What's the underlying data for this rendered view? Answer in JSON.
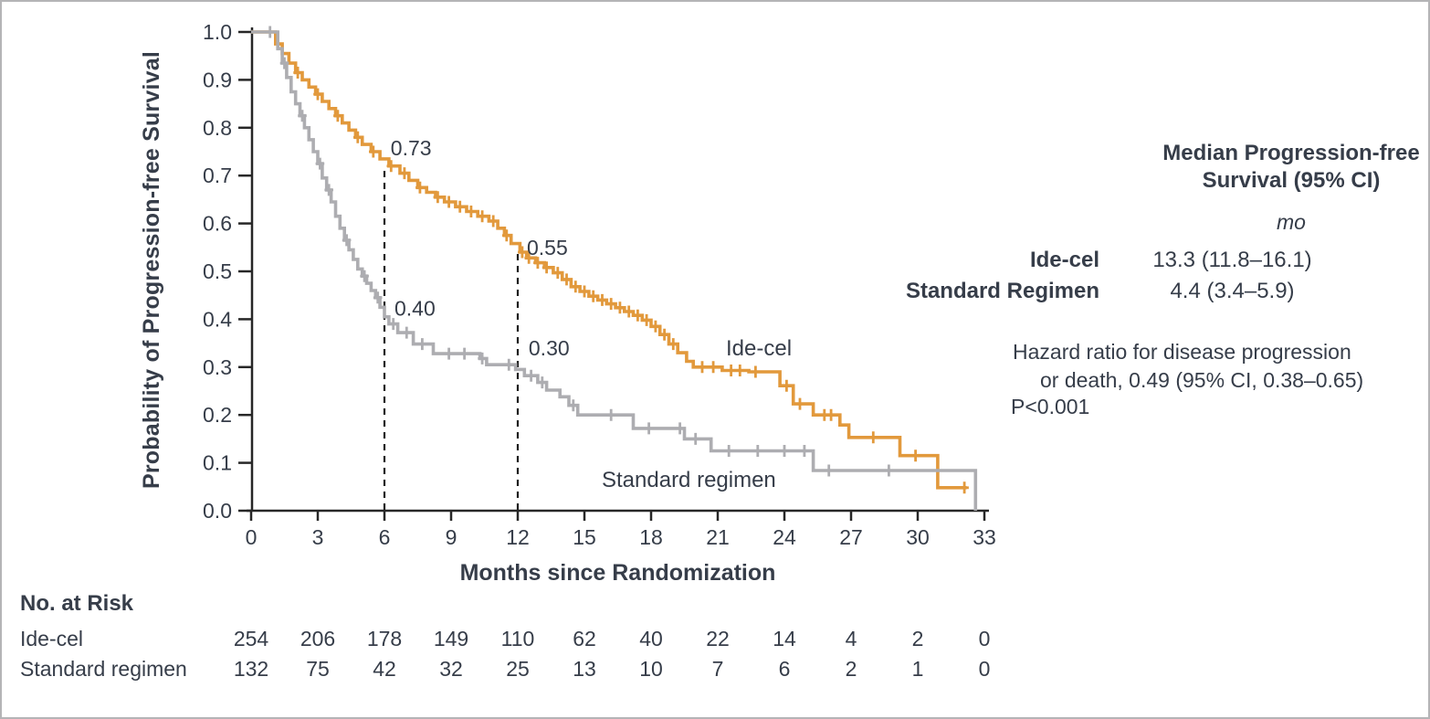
{
  "figure": {
    "kind": "kaplan-meier-survival-figure"
  },
  "chart_data": {
    "type": "line",
    "subtype": "kaplan-meier-step",
    "title": "",
    "xlabel": "Months since Randomization",
    "ylabel": "Probability of Progression-free Survival",
    "xlim": [
      0,
      33
    ],
    "ylim": [
      0.0,
      1.0
    ],
    "x_ticks": [
      0,
      3,
      6,
      9,
      12,
      15,
      18,
      21,
      24,
      27,
      30,
      33
    ],
    "y_tick_labels": [
      "1.0",
      "0.9",
      "0.8",
      "0.7",
      "0.6",
      "0.5",
      "0.4",
      "0.3",
      "0.2",
      "0.1",
      "0.0"
    ],
    "grid": false,
    "legend_position": "labels-on-plot",
    "series": [
      {
        "name": "Ide-cel",
        "color": "#E2993C",
        "points": [
          [
            0,
            1
          ],
          [
            0.9,
            1
          ],
          [
            1.1,
            0.975
          ],
          [
            1.4,
            0.955
          ],
          [
            1.7,
            0.935
          ],
          [
            2,
            0.915
          ],
          [
            2.3,
            0.9
          ],
          [
            2.6,
            0.885
          ],
          [
            2.9,
            0.87
          ],
          [
            3.2,
            0.855
          ],
          [
            3.5,
            0.84
          ],
          [
            3.8,
            0.825
          ],
          [
            4.1,
            0.81
          ],
          [
            4.4,
            0.795
          ],
          [
            4.7,
            0.78
          ],
          [
            5,
            0.765
          ],
          [
            5.4,
            0.75
          ],
          [
            5.8,
            0.735
          ],
          [
            6.2,
            0.72
          ],
          [
            6.7,
            0.705
          ],
          [
            7.1,
            0.69
          ],
          [
            7.5,
            0.675
          ],
          [
            7.9,
            0.665
          ],
          [
            8.3,
            0.655
          ],
          [
            8.7,
            0.645
          ],
          [
            9.2,
            0.635
          ],
          [
            9.7,
            0.625
          ],
          [
            10.2,
            0.615
          ],
          [
            10.7,
            0.605
          ],
          [
            11.1,
            0.59
          ],
          [
            11.4,
            0.575
          ],
          [
            11.7,
            0.558
          ],
          [
            12.1,
            0.54
          ],
          [
            12.4,
            0.528
          ],
          [
            12.8,
            0.518
          ],
          [
            13.2,
            0.508
          ],
          [
            13.6,
            0.497
          ],
          [
            14,
            0.483
          ],
          [
            14.4,
            0.468
          ],
          [
            14.8,
            0.458
          ],
          [
            15.2,
            0.448
          ],
          [
            15.6,
            0.44
          ],
          [
            16,
            0.432
          ],
          [
            16.4,
            0.424
          ],
          [
            16.8,
            0.416
          ],
          [
            17.2,
            0.408
          ],
          [
            17.6,
            0.398
          ],
          [
            18,
            0.385
          ],
          [
            18.4,
            0.368
          ],
          [
            18.8,
            0.348
          ],
          [
            19.2,
            0.33
          ],
          [
            19.6,
            0.312
          ],
          [
            19.9,
            0.3
          ],
          [
            21.2,
            0.293
          ],
          [
            22.4,
            0.29
          ],
          [
            23.8,
            0.261
          ],
          [
            24.4,
            0.223
          ],
          [
            25.3,
            0.2
          ],
          [
            26.5,
            0.179
          ],
          [
            26.9,
            0.153
          ],
          [
            29.2,
            0.115
          ],
          [
            30.9,
            0.048
          ],
          [
            32.2,
            0.048
          ]
        ],
        "censors": [
          [
            2.1,
            0.915
          ],
          [
            3,
            0.87
          ],
          [
            3.9,
            0.825
          ],
          [
            4.8,
            0.78
          ],
          [
            5.5,
            0.75
          ],
          [
            6.3,
            0.72
          ],
          [
            6.9,
            0.705
          ],
          [
            7.6,
            0.675
          ],
          [
            8.4,
            0.655
          ],
          [
            8.9,
            0.645
          ],
          [
            9.4,
            0.635
          ],
          [
            9.9,
            0.625
          ],
          [
            10.4,
            0.615
          ],
          [
            10.9,
            0.605
          ],
          [
            11.5,
            0.575
          ],
          [
            12.2,
            0.54
          ],
          [
            12.5,
            0.528
          ],
          [
            12.9,
            0.518
          ],
          [
            13.3,
            0.508
          ],
          [
            13.8,
            0.497
          ],
          [
            14.2,
            0.483
          ],
          [
            14.6,
            0.468
          ],
          [
            15,
            0.458
          ],
          [
            15.4,
            0.448
          ],
          [
            15.8,
            0.44
          ],
          [
            16.2,
            0.432
          ],
          [
            16.6,
            0.424
          ],
          [
            17,
            0.416
          ],
          [
            17.4,
            0.408
          ],
          [
            17.8,
            0.398
          ],
          [
            18.2,
            0.385
          ],
          [
            18.6,
            0.368
          ],
          [
            19,
            0.348
          ],
          [
            20.3,
            0.3
          ],
          [
            20.8,
            0.3
          ],
          [
            21.6,
            0.293
          ],
          [
            22,
            0.293
          ],
          [
            22.7,
            0.29
          ],
          [
            24.1,
            0.261
          ],
          [
            24.7,
            0.223
          ],
          [
            25.8,
            0.2
          ],
          [
            26.1,
            0.2
          ],
          [
            28,
            0.153
          ],
          [
            29.9,
            0.115
          ],
          [
            32.1,
            0.048
          ]
        ],
        "landmarks": {
          "month_6": 0.73,
          "month_12": 0.55
        }
      },
      {
        "name": "Standard regimen",
        "color": "#ADADB1",
        "points": [
          [
            0,
            1
          ],
          [
            1,
            1
          ],
          [
            1.2,
            0.965
          ],
          [
            1.4,
            0.935
          ],
          [
            1.6,
            0.905
          ],
          [
            1.8,
            0.875
          ],
          [
            2,
            0.85
          ],
          [
            2.2,
            0.825
          ],
          [
            2.4,
            0.8
          ],
          [
            2.6,
            0.775
          ],
          [
            2.8,
            0.75
          ],
          [
            3,
            0.725
          ],
          [
            3.2,
            0.695
          ],
          [
            3.4,
            0.67
          ],
          [
            3.6,
            0.645
          ],
          [
            3.8,
            0.615
          ],
          [
            4,
            0.59
          ],
          [
            4.2,
            0.565
          ],
          [
            4.4,
            0.545
          ],
          [
            4.6,
            0.525
          ],
          [
            4.8,
            0.505
          ],
          [
            5,
            0.49
          ],
          [
            5.2,
            0.475
          ],
          [
            5.4,
            0.46
          ],
          [
            5.6,
            0.445
          ],
          [
            5.8,
            0.425
          ],
          [
            6,
            0.405
          ],
          [
            6.2,
            0.39
          ],
          [
            6.6,
            0.372
          ],
          [
            7.3,
            0.348
          ],
          [
            8.2,
            0.328
          ],
          [
            10.3,
            0.318
          ],
          [
            10.6,
            0.305
          ],
          [
            11.9,
            0.295
          ],
          [
            12.3,
            0.282
          ],
          [
            12.9,
            0.268
          ],
          [
            13.3,
            0.252
          ],
          [
            13.9,
            0.238
          ],
          [
            14.3,
            0.22
          ],
          [
            14.7,
            0.2
          ],
          [
            17.2,
            0.172
          ],
          [
            19.5,
            0.15
          ],
          [
            20.7,
            0.125
          ],
          [
            25.3,
            0.084
          ],
          [
            32.6,
            0.084
          ],
          [
            32.6,
            0
          ]
        ],
        "censors": [
          [
            0.85,
            1
          ],
          [
            1.5,
            0.935
          ],
          [
            2.3,
            0.825
          ],
          [
            3.1,
            0.725
          ],
          [
            3.5,
            0.67
          ],
          [
            4.3,
            0.565
          ],
          [
            5.1,
            0.49
          ],
          [
            5.7,
            0.445
          ],
          [
            6.4,
            0.39
          ],
          [
            7,
            0.372
          ],
          [
            7.7,
            0.348
          ],
          [
            8.9,
            0.328
          ],
          [
            9.6,
            0.328
          ],
          [
            10.4,
            0.318
          ],
          [
            11.6,
            0.305
          ],
          [
            12.6,
            0.282
          ],
          [
            13.1,
            0.268
          ],
          [
            14.5,
            0.22
          ],
          [
            16.2,
            0.2
          ],
          [
            17.9,
            0.172
          ],
          [
            19.3,
            0.172
          ],
          [
            20,
            0.15
          ],
          [
            21.5,
            0.125
          ],
          [
            22.8,
            0.125
          ],
          [
            24,
            0.125
          ],
          [
            24.9,
            0.125
          ],
          [
            26,
            0.084
          ],
          [
            28.7,
            0.084
          ]
        ],
        "landmarks": {
          "month_6": 0.4,
          "month_12": 0.3
        }
      }
    ],
    "reference_lines": [
      {
        "x": 6,
        "y_top": 0.73,
        "style": "dashed"
      },
      {
        "x": 12,
        "y_top": 0.55,
        "style": "dashed"
      }
    ],
    "annotations": [
      {
        "text": "0.73",
        "month": 6.28,
        "prob": 0.742,
        "size": 23
      },
      {
        "text": "0.55",
        "month": 12.41,
        "prob": 0.534,
        "size": 23
      },
      {
        "text": "0.40",
        "month": 6.45,
        "prob": 0.407,
        "size": 23
      },
      {
        "text": "0.30",
        "month": 12.49,
        "prob": 0.324,
        "size": 23
      },
      {
        "text": "Ide-cel",
        "month": 21.37,
        "prob": 0.324,
        "size": 24
      },
      {
        "text": "Standard regimen",
        "month": 15.78,
        "prob": 0.05,
        "size": 24
      }
    ]
  },
  "stats_panel": {
    "header_line1": "Median Progression-free",
    "header_line2": "Survival (95% CI)",
    "unit": "mo",
    "rows": [
      {
        "label": "Ide-cel",
        "value": "13.3 (11.8–16.1)"
      },
      {
        "label": "Standard Regimen",
        "value": "4.4 (3.4–5.9)"
      }
    ],
    "hazard_line1": "Hazard ratio for disease progression",
    "hazard_line2": "or death, 0.49 (95% CI, 0.38–0.65)",
    "p_value": "P<0.001"
  },
  "risk_table": {
    "title": "No. at Risk",
    "timepoints": [
      0,
      3,
      6,
      9,
      12,
      15,
      18,
      21,
      24,
      27,
      30,
      33
    ],
    "rows": [
      {
        "label": "Ide-cel",
        "values": [
          "254",
          "206",
          "178",
          "149",
          "110",
          "62",
          "40",
          "22",
          "14",
          "4",
          "2",
          "0"
        ]
      },
      {
        "label": "Standard regimen",
        "values": [
          "132",
          "75",
          "42",
          "32",
          "25",
          "13",
          "10",
          "7",
          "6",
          "2",
          "1",
          "0"
        ]
      }
    ]
  },
  "colors": {
    "ide_cel": "#E2993C",
    "standard_regimen": "#ADADB1",
    "ink": "#363D49",
    "axis": "#272727",
    "dashed_line": "#1E1E1E",
    "frame_border": "#B4B4B6"
  }
}
